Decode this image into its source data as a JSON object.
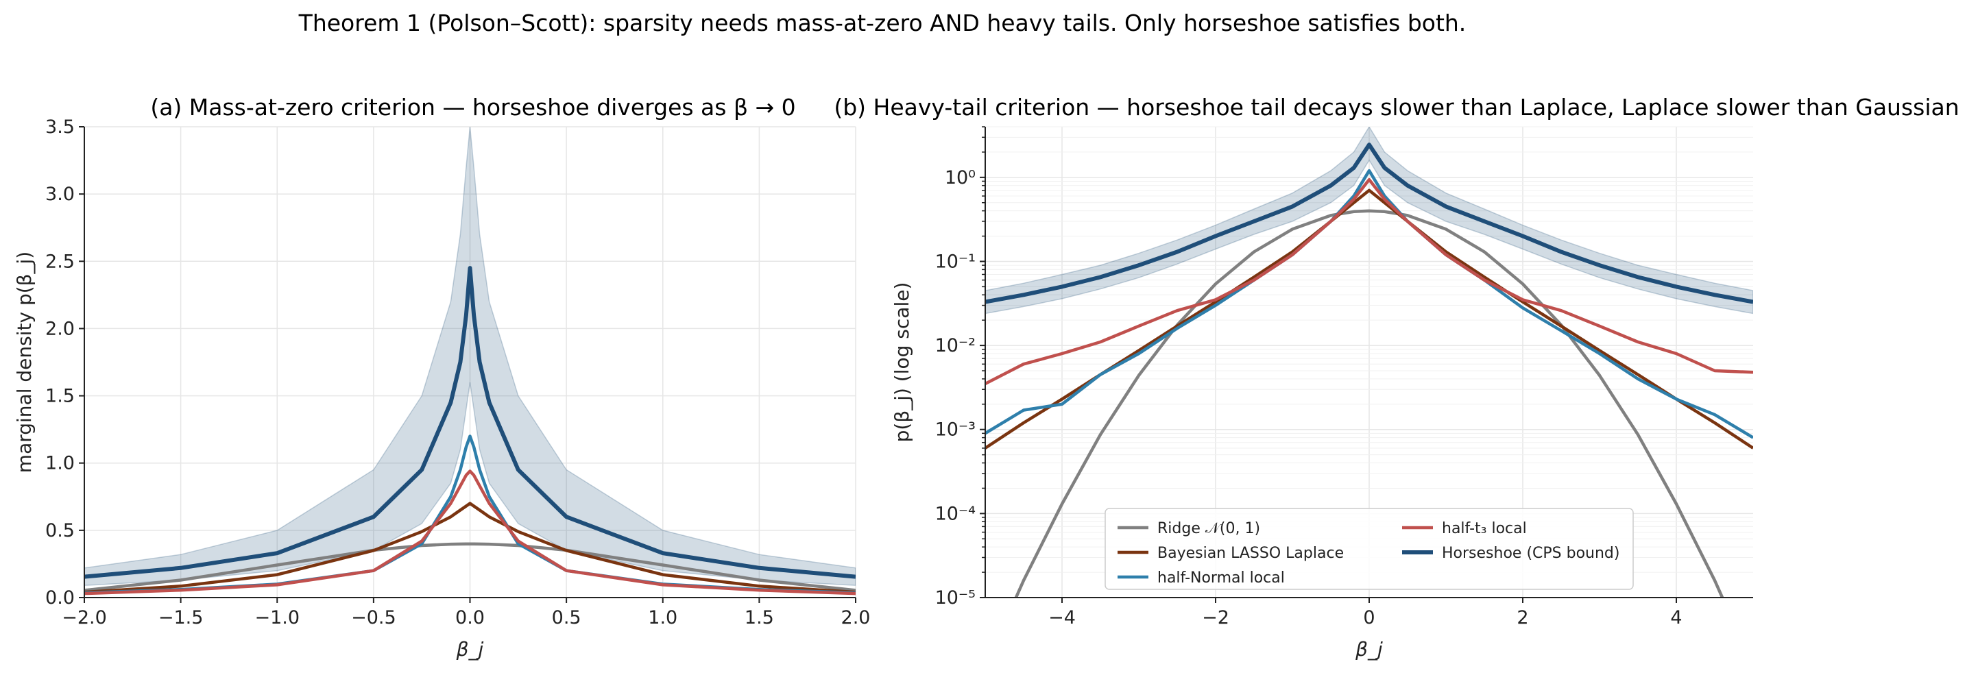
{
  "figure": {
    "suptitle": "Theorem 1 (Polson–Scott): sparsity needs mass-at-zero AND heavy tails. Only horseshoe satisfies both."
  },
  "chart_data": [
    {
      "type": "line",
      "title": "(a) Mass-at-zero criterion — horseshoe diverges as β → 0",
      "xlabel": "β_j",
      "ylabel": "marginal density  p(β_j)",
      "xlim": [
        -2.0,
        2.0
      ],
      "ylim": [
        0.0,
        3.5
      ],
      "xticks": [
        "−2.0",
        "−1.5",
        "−1.0",
        "−0.5",
        "0.0",
        "0.5",
        "1.0",
        "1.5",
        "2.0"
      ],
      "yticks": [
        "0.0",
        "0.5",
        "1.0",
        "1.5",
        "2.0",
        "2.5",
        "3.0",
        "3.5"
      ],
      "grid": true,
      "x": [
        -2.0,
        -1.5,
        -1.0,
        -0.5,
        -0.25,
        -0.1,
        -0.05,
        -0.02,
        0.0,
        0.02,
        0.05,
        0.1,
        0.25,
        0.5,
        1.0,
        1.5,
        2.0
      ],
      "series": [
        {
          "name": "Ridge 𝒩(0, 1)",
          "color": "#808080",
          "values": [
            0.054,
            0.13,
            0.242,
            0.352,
            0.387,
            0.397,
            0.398,
            0.399,
            0.399,
            0.399,
            0.398,
            0.397,
            0.387,
            0.352,
            0.242,
            0.13,
            0.054
          ]
        },
        {
          "name": "Bayesian LASSO Laplace",
          "color": "#7a3410",
          "values": [
            0.04,
            0.085,
            0.17,
            0.35,
            0.49,
            0.6,
            0.65,
            0.68,
            0.7,
            0.68,
            0.65,
            0.6,
            0.49,
            0.35,
            0.17,
            0.085,
            0.04
          ]
        },
        {
          "name": "half-Normal local",
          "color": "#2e7fab",
          "values": [
            0.035,
            0.06,
            0.1,
            0.2,
            0.4,
            0.75,
            0.95,
            1.12,
            1.2,
            1.12,
            0.95,
            0.75,
            0.4,
            0.2,
            0.1,
            0.06,
            0.035
          ]
        },
        {
          "name": "half-t₃ local",
          "color": "#c0504d",
          "values": [
            0.03,
            0.055,
            0.095,
            0.2,
            0.42,
            0.7,
            0.83,
            0.91,
            0.94,
            0.91,
            0.83,
            0.7,
            0.42,
            0.2,
            0.095,
            0.055,
            0.03
          ]
        },
        {
          "name": "Horseshoe (CPS bound)",
          "color": "#1f4e79",
          "values": [
            0.155,
            0.22,
            0.33,
            0.6,
            0.95,
            1.45,
            1.75,
            2.1,
            2.45,
            2.1,
            1.75,
            1.45,
            0.95,
            0.6,
            0.33,
            0.22,
            0.155
          ],
          "band_lower": [
            0.09,
            0.13,
            0.2,
            0.35,
            0.55,
            0.85,
            1.1,
            1.4,
            1.6,
            1.4,
            1.1,
            0.85,
            0.55,
            0.35,
            0.2,
            0.13,
            0.09
          ],
          "band_upper": [
            0.22,
            0.32,
            0.5,
            0.95,
            1.5,
            2.2,
            2.7,
            3.2,
            3.5,
            3.2,
            2.7,
            2.2,
            1.5,
            0.95,
            0.5,
            0.32,
            0.22
          ]
        }
      ]
    },
    {
      "type": "line",
      "title": "(b) Heavy-tail criterion — horseshoe tail decays slower than Laplace, Laplace slower than Gaussian",
      "xlabel": "β_j",
      "ylabel": "p(β_j)  (log scale)",
      "xlim": [
        -5,
        5
      ],
      "ylim": [
        1e-05,
        4
      ],
      "yscale": "log",
      "xticks": [
        "−4",
        "−2",
        "0",
        "2",
        "4"
      ],
      "yticks": [
        "10⁻⁵",
        "10⁻⁴",
        "10⁻³",
        "10⁻²",
        "10⁻¹",
        "10⁰"
      ],
      "grid": true,
      "legend_location": "lower center",
      "x": [
        -5,
        -4.5,
        -4,
        -3.5,
        -3,
        -2.5,
        -2,
        -1.5,
        -1,
        -0.5,
        -0.2,
        0,
        0.2,
        0.5,
        1,
        1.5,
        2,
        2.5,
        3,
        3.5,
        4,
        4.5,
        5
      ],
      "series": [
        {
          "name": "Ridge 𝒩(0, 1)",
          "color": "#808080",
          "values": [
            1.5e-06,
            1.6e-05,
            0.00013,
            0.00087,
            0.0044,
            0.0175,
            0.054,
            0.13,
            0.242,
            0.352,
            0.391,
            0.399,
            0.391,
            0.352,
            0.242,
            0.13,
            0.054,
            0.0175,
            0.0044,
            0.00087,
            0.00013,
            1.6e-05,
            1.5e-06
          ]
        },
        {
          "name": "Bayesian LASSO Laplace",
          "color": "#7a3410",
          "values": [
            0.0006,
            0.0012,
            0.0023,
            0.0045,
            0.0087,
            0.017,
            0.033,
            0.065,
            0.13,
            0.3,
            0.5,
            0.7,
            0.5,
            0.3,
            0.13,
            0.065,
            0.033,
            0.017,
            0.0087,
            0.0045,
            0.0023,
            0.0012,
            0.0006
          ]
        },
        {
          "name": "half-Normal local",
          "color": "#2e7fab",
          "values": [
            0.0009,
            0.0017,
            0.002,
            0.0045,
            0.008,
            0.016,
            0.03,
            0.06,
            0.12,
            0.3,
            0.6,
            1.2,
            0.6,
            0.3,
            0.12,
            0.06,
            0.028,
            0.015,
            0.008,
            0.004,
            0.0023,
            0.0015,
            0.0008
          ]
        },
        {
          "name": "half-t₃ local",
          "color": "#c0504d",
          "values": [
            0.0035,
            0.006,
            0.008,
            0.011,
            0.017,
            0.026,
            0.035,
            0.06,
            0.12,
            0.3,
            0.55,
            0.94,
            0.55,
            0.3,
            0.12,
            0.06,
            0.035,
            0.026,
            0.017,
            0.011,
            0.008,
            0.005,
            0.0048
          ]
        },
        {
          "name": "Horseshoe (CPS bound)",
          "color": "#1f4e79",
          "values": [
            0.033,
            0.04,
            0.05,
            0.065,
            0.09,
            0.13,
            0.2,
            0.3,
            0.45,
            0.8,
            1.3,
            2.45,
            1.3,
            0.8,
            0.45,
            0.3,
            0.2,
            0.13,
            0.09,
            0.065,
            0.05,
            0.04,
            0.033
          ],
          "band_lower": [
            0.024,
            0.029,
            0.036,
            0.047,
            0.064,
            0.093,
            0.14,
            0.21,
            0.3,
            0.5,
            0.8,
            1.6,
            0.8,
            0.5,
            0.3,
            0.21,
            0.14,
            0.093,
            0.064,
            0.047,
            0.036,
            0.029,
            0.024
          ],
          "band_upper": [
            0.045,
            0.055,
            0.07,
            0.09,
            0.125,
            0.18,
            0.27,
            0.42,
            0.65,
            1.2,
            2.0,
            4.0,
            2.0,
            1.2,
            0.65,
            0.42,
            0.27,
            0.18,
            0.125,
            0.09,
            0.07,
            0.055,
            0.045
          ]
        }
      ]
    }
  ]
}
